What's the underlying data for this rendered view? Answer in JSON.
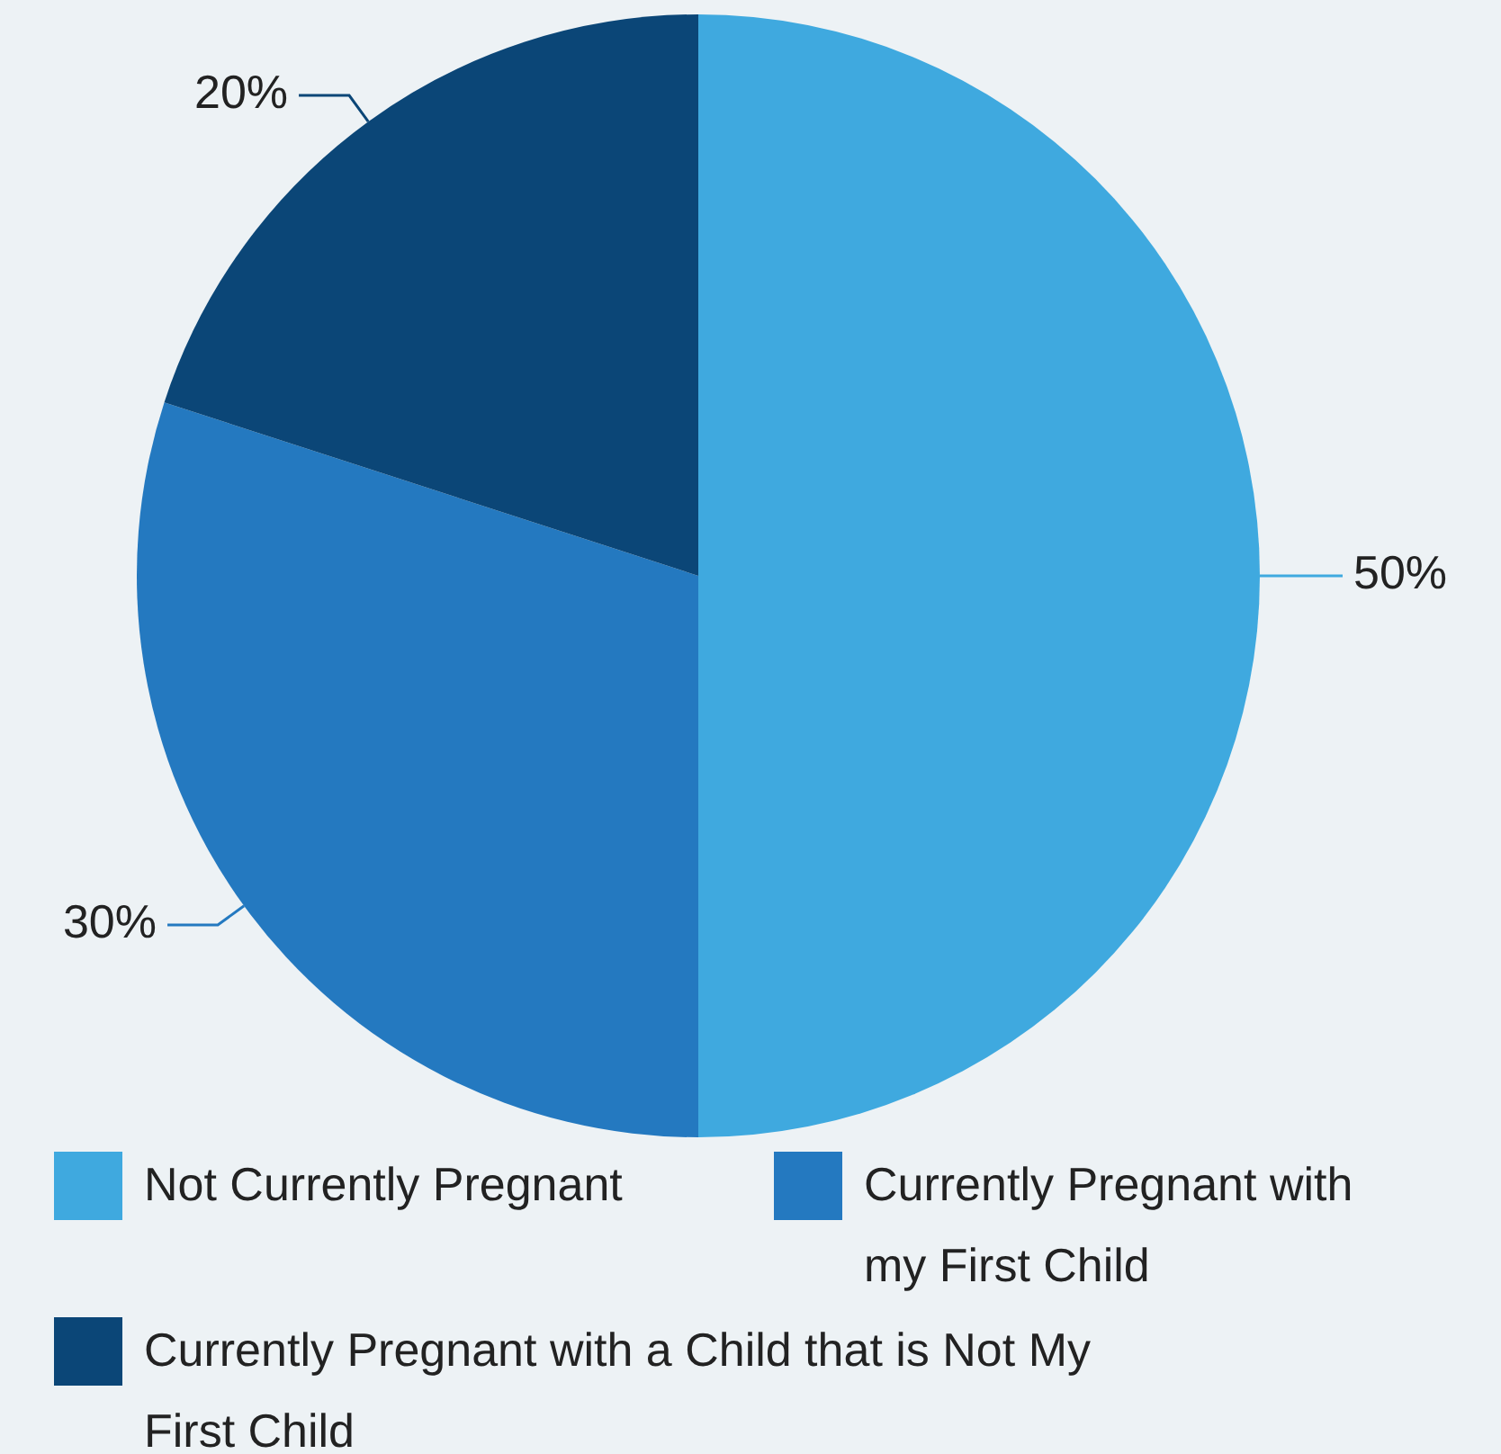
{
  "chart_data": {
    "type": "pie",
    "categories": [
      "Not Currently Pregnant",
      "Currently Pregnant with my First Child",
      "Currently Pregnant with a Child that is Not My First Child"
    ],
    "values": [
      50,
      30,
      20
    ],
    "colors": [
      "#3fa9df",
      "#2479c0",
      "#0b4677"
    ],
    "value_labels": [
      "50%",
      "30%",
      "20%"
    ],
    "legend": "bottom"
  }
}
